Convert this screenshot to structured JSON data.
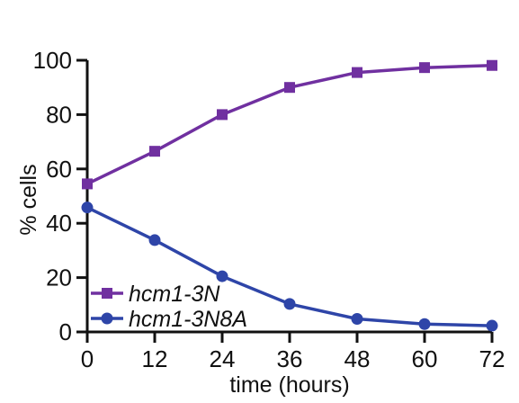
{
  "chart_data": {
    "type": "line",
    "title": "",
    "xlabel": "time (hours)",
    "ylabel": "% cells",
    "xlim": [
      0,
      72
    ],
    "ylim": [
      0,
      100
    ],
    "xticks": [
      0,
      12,
      24,
      36,
      48,
      60,
      72
    ],
    "yticks": [
      0,
      20,
      40,
      60,
      80,
      100
    ],
    "x": [
      0,
      12,
      24,
      36,
      48,
      60,
      72
    ],
    "grid": false,
    "legend_position": "bottom-left",
    "series": [
      {
        "name": "hcm1-3N",
        "marker": "square",
        "color": "#7030A0",
        "values": [
          54.5,
          66.5,
          80,
          90,
          95.5,
          97.3,
          98.1
        ]
      },
      {
        "name": "hcm1-3N8A",
        "marker": "circle",
        "color": "#2E45A8",
        "values": [
          45.8,
          33.8,
          20.5,
          10.3,
          4.8,
          2.9,
          2.3
        ]
      }
    ]
  }
}
